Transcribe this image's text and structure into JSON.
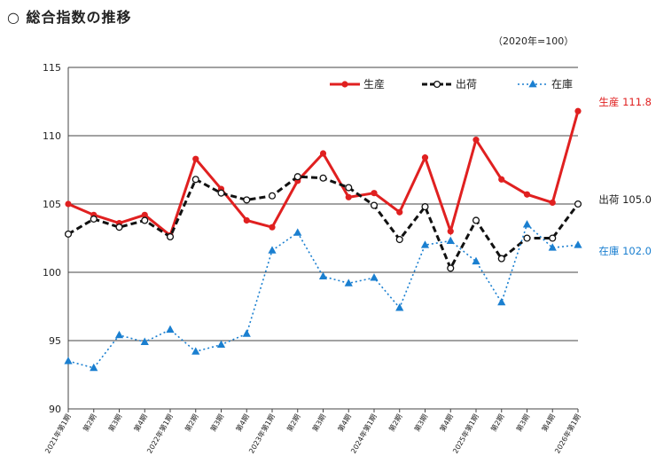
{
  "page": {
    "title": "○ 総合指数の推移",
    "base_note": "（2020年=100）"
  },
  "chart_data": {
    "type": "line",
    "categories": [
      "2021年第1期",
      "第2期",
      "第3期",
      "第4期",
      "2022年第1期",
      "第2期",
      "第3期",
      "第4期",
      "2023年第1期",
      "第2期",
      "第3期",
      "第4期",
      "2024年第1期",
      "第2期",
      "第3期",
      "第4期",
      "2025年第1期",
      "第2期",
      "第3期",
      "第4期",
      "2026年第1期"
    ],
    "ylim": [
      90,
      115
    ],
    "yticks": [
      90,
      95,
      100,
      105,
      110,
      115
    ],
    "grid": true,
    "legend_position": "top-right",
    "series": [
      {
        "name": "生産",
        "color": "#e02020",
        "style": "solid-circle",
        "values": [
          105.0,
          104.2,
          103.6,
          104.2,
          102.7,
          108.3,
          106.1,
          103.8,
          103.3,
          106.7,
          108.7,
          105.5,
          105.8,
          104.4,
          108.4,
          103.0,
          109.7,
          106.8,
          105.7,
          105.1,
          111.8
        ],
        "end_label": "生産 111.8"
      },
      {
        "name": "出荷",
        "color": "#111111",
        "style": "dashed-open-circle",
        "values": [
          102.8,
          103.9,
          103.3,
          103.8,
          102.6,
          106.8,
          105.8,
          105.3,
          105.6,
          107.0,
          106.9,
          106.2,
          104.9,
          102.4,
          104.8,
          100.3,
          103.8,
          101.0,
          102.5,
          102.5,
          105.0
        ],
        "end_label": "出荷 105.0"
      },
      {
        "name": "在庫",
        "color": "#1a7fd0",
        "style": "dotted-triangle",
        "values": [
          93.5,
          93.0,
          95.4,
          94.9,
          95.8,
          94.2,
          94.7,
          95.5,
          101.6,
          102.9,
          99.7,
          99.2,
          99.6,
          97.4,
          102.0,
          102.3,
          100.8,
          97.8,
          103.5,
          101.8,
          102.0
        ],
        "end_label": "在庫 102.0"
      }
    ]
  }
}
